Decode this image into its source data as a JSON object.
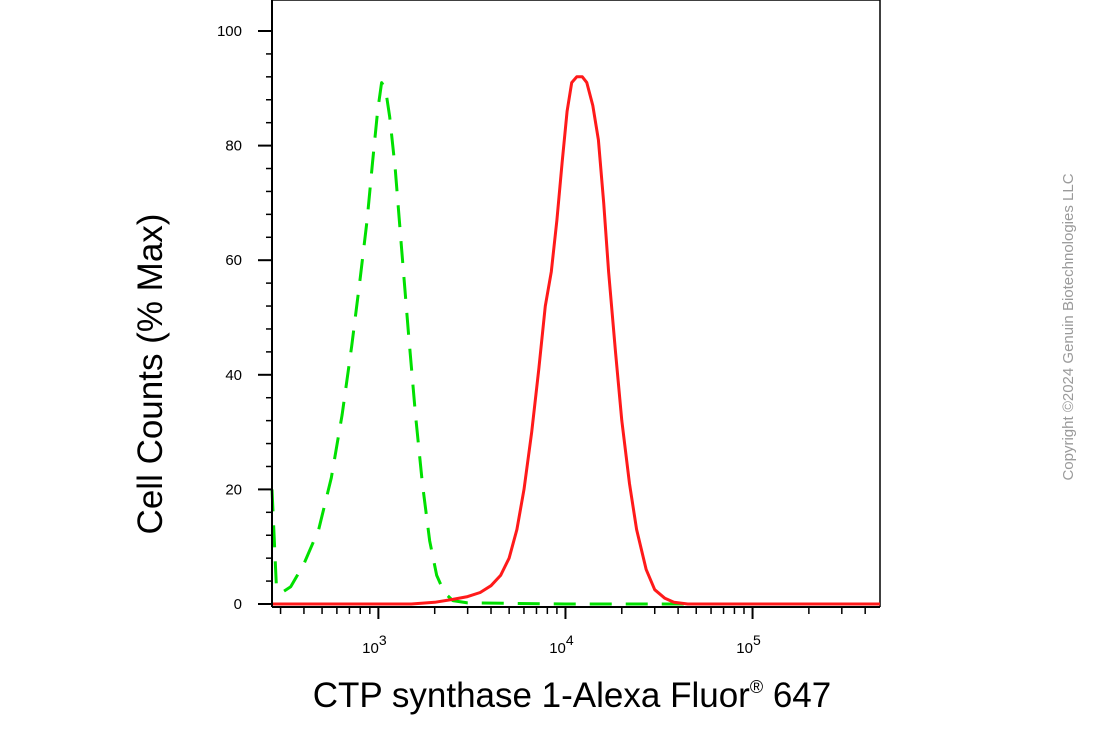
{
  "chart_data": {
    "type": "line",
    "xlabel": "CTP synthase 1-Alexa Fluor",
    "xlabel_superscript": "®",
    "xlabel_suffix": " 647",
    "ylabel": "Cell Counts (% Max)",
    "x_scale": "log",
    "xlim": [
      270,
      480000
    ],
    "ylim": [
      0,
      100
    ],
    "y_ticks": [
      0,
      20,
      40,
      60,
      80,
      100
    ],
    "x_ticks": [
      {
        "value": 1000,
        "base": "10",
        "exponent": "3"
      },
      {
        "value": 10000,
        "base": "10",
        "exponent": "4"
      },
      {
        "value": 100000,
        "base": "10",
        "exponent": "5"
      }
    ],
    "grid": false,
    "legend": "none",
    "series": [
      {
        "color": "#00e000",
        "style": "dashed",
        "points": [
          [
            270,
            20
          ],
          [
            285,
            3
          ],
          [
            305,
            2
          ],
          [
            340,
            3
          ],
          [
            400,
            7
          ],
          [
            480,
            13
          ],
          [
            560,
            22
          ],
          [
            640,
            33
          ],
          [
            720,
            45
          ],
          [
            800,
            57
          ],
          [
            870,
            67
          ],
          [
            930,
            77
          ],
          [
            990,
            86
          ],
          [
            1040,
            91
          ],
          [
            1090,
            90
          ],
          [
            1150,
            85
          ],
          [
            1230,
            76
          ],
          [
            1330,
            62
          ],
          [
            1450,
            47
          ],
          [
            1580,
            33
          ],
          [
            1720,
            21
          ],
          [
            1880,
            11
          ],
          [
            2050,
            5
          ],
          [
            2250,
            2
          ],
          [
            2500,
            0.6
          ],
          [
            3000,
            0.2
          ],
          [
            10000,
            0
          ],
          [
            480000,
            0
          ]
        ]
      },
      {
        "color": "#ff1a1a",
        "style": "solid",
        "points": [
          [
            270,
            0
          ],
          [
            1500,
            0
          ],
          [
            2000,
            0.3
          ],
          [
            2500,
            0.8
          ],
          [
            3000,
            1.3
          ],
          [
            3500,
            2
          ],
          [
            4000,
            3.2
          ],
          [
            4500,
            5
          ],
          [
            5000,
            8
          ],
          [
            5500,
            13
          ],
          [
            6000,
            20
          ],
          [
            6600,
            30
          ],
          [
            7200,
            41
          ],
          [
            7800,
            52
          ],
          [
            8400,
            58
          ],
          [
            9000,
            67
          ],
          [
            9600,
            77
          ],
          [
            10200,
            86
          ],
          [
            10800,
            91
          ],
          [
            11500,
            92
          ],
          [
            12300,
            92
          ],
          [
            13000,
            91
          ],
          [
            14000,
            87
          ],
          [
            15000,
            81
          ],
          [
            16000,
            70
          ],
          [
            17000,
            58
          ],
          [
            18500,
            44
          ],
          [
            20000,
            32
          ],
          [
            22000,
            21
          ],
          [
            24000,
            13
          ],
          [
            27000,
            6
          ],
          [
            30000,
            2.5
          ],
          [
            34000,
            1
          ],
          [
            38000,
            0.3
          ],
          [
            45000,
            0
          ],
          [
            480000,
            0
          ]
        ]
      }
    ]
  },
  "copyright": "Copyright ©2024 Genuin Biotechnologies LLC"
}
